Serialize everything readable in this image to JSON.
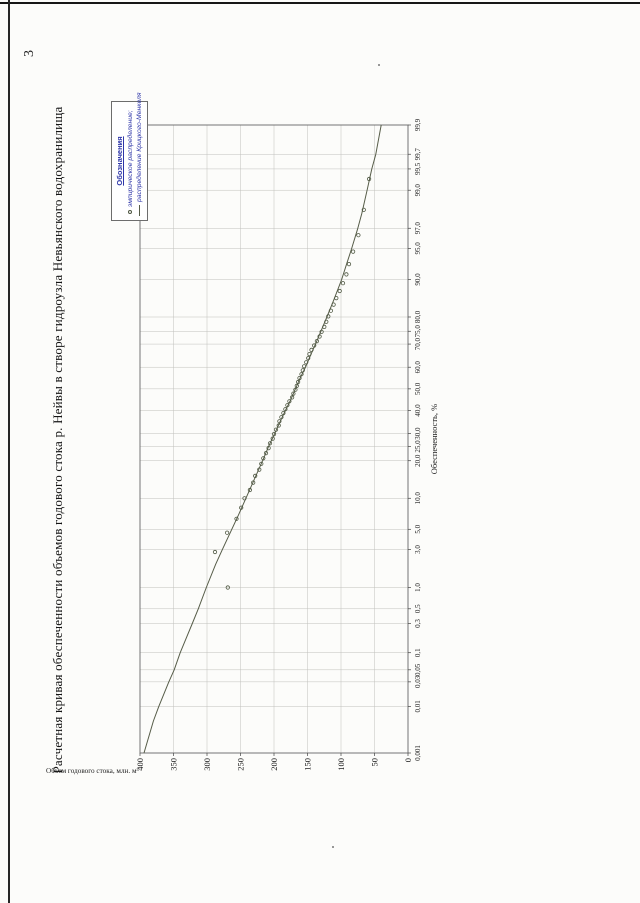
{
  "page": {
    "number": "3"
  },
  "chart_data": {
    "type": "line+scatter",
    "title": "Расчетная кривая обеспеченности объемов годового стока р. Нейвы в створе гидроузла Невьянского водохранилища",
    "xlabel": "Обеспеченность, %",
    "ylabel": "Объем годового стока, млн. м³",
    "x_scale": "normal-probability",
    "xlim_percent": [
      0.001,
      99.9
    ],
    "ylim": [
      0,
      400
    ],
    "grid": true,
    "y_ticks": [
      0,
      50,
      100,
      150,
      200,
      250,
      300,
      350,
      400
    ],
    "x_ticks": [
      {
        "p": 0.001,
        "label": "0,001"
      },
      {
        "p": 0.01,
        "label": "0,01"
      },
      {
        "p": 0.03,
        "label": "0,03"
      },
      {
        "p": 0.05,
        "label": "0,05"
      },
      {
        "p": 0.1,
        "label": "0,1"
      },
      {
        "p": 0.3,
        "label": "0,3"
      },
      {
        "p": 0.5,
        "label": "0,5"
      },
      {
        "p": 1,
        "label": "1,0"
      },
      {
        "p": 3,
        "label": "3,0"
      },
      {
        "p": 5,
        "label": "5,0"
      },
      {
        "p": 10,
        "label": "10,0"
      },
      {
        "p": 20,
        "label": "20,0"
      },
      {
        "p": 25,
        "label": "25,0"
      },
      {
        "p": 30,
        "label": "30,0"
      },
      {
        "p": 40,
        "label": "40,0"
      },
      {
        "p": 50,
        "label": "50,0"
      },
      {
        "p": 60,
        "label": "60,0"
      },
      {
        "p": 70,
        "label": "70,0"
      },
      {
        "p": 75,
        "label": "75,0"
      },
      {
        "p": 80,
        "label": "80,0"
      },
      {
        "p": 90,
        "label": "90,0"
      },
      {
        "p": 95,
        "label": "95,0"
      },
      {
        "p": 97,
        "label": "97,0"
      },
      {
        "p": 99,
        "label": "99,0"
      },
      {
        "p": 99.5,
        "label": "99,5"
      },
      {
        "p": 99.7,
        "label": "99,7"
      },
      {
        "p": 99.9,
        "label": "99,9"
      }
    ],
    "legend": {
      "title": "Обозначения",
      "entries": [
        {
          "marker": "circle",
          "label": "эмпирическое распределение;"
        },
        {
          "marker": "line",
          "label": "распределение Крицкого-Менкеля"
        }
      ]
    },
    "series": [
      {
        "name": "эмпирическое распределение",
        "type": "scatter",
        "points": [
          [
            1.0,
            269
          ],
          [
            2.8,
            288
          ],
          [
            4.6,
            270
          ],
          [
            6.4,
            256
          ],
          [
            8.2,
            249
          ],
          [
            10.0,
            244
          ],
          [
            11.8,
            236
          ],
          [
            13.6,
            231
          ],
          [
            15.4,
            228
          ],
          [
            17.2,
            222
          ],
          [
            19.0,
            219
          ],
          [
            20.8,
            216
          ],
          [
            22.6,
            212
          ],
          [
            24.4,
            208
          ],
          [
            26.2,
            206
          ],
          [
            28.0,
            202
          ],
          [
            29.8,
            200
          ],
          [
            31.6,
            197
          ],
          [
            33.4,
            193
          ],
          [
            35.2,
            192
          ],
          [
            37.0,
            189
          ],
          [
            38.8,
            186
          ],
          [
            40.6,
            183
          ],
          [
            42.4,
            180
          ],
          [
            44.2,
            177
          ],
          [
            46.0,
            173
          ],
          [
            47.8,
            171
          ],
          [
            49.6,
            168
          ],
          [
            51.4,
            166
          ],
          [
            53.2,
            164
          ],
          [
            55.0,
            162
          ],
          [
            56.8,
            159
          ],
          [
            58.6,
            157
          ],
          [
            60.4,
            155
          ],
          [
            62.2,
            152
          ],
          [
            64.0,
            149
          ],
          [
            65.8,
            147
          ],
          [
            67.6,
            144
          ],
          [
            69.4,
            140
          ],
          [
            71.2,
            136
          ],
          [
            73.0,
            132
          ],
          [
            74.8,
            129
          ],
          [
            76.6,
            125
          ],
          [
            78.4,
            122
          ],
          [
            80.2,
            119
          ],
          [
            82.0,
            115
          ],
          [
            83.8,
            111
          ],
          [
            85.6,
            107
          ],
          [
            87.4,
            102
          ],
          [
            89.2,
            97
          ],
          [
            91.0,
            92
          ],
          [
            92.8,
            88
          ],
          [
            94.6,
            82
          ],
          [
            96.4,
            74
          ],
          [
            98.2,
            66
          ],
          [
            99.3,
            58
          ]
        ]
      },
      {
        "name": "распределение Крицкого-Менкеля",
        "type": "line",
        "points": [
          [
            0.001,
            394
          ],
          [
            0.005,
            380
          ],
          [
            0.01,
            372
          ],
          [
            0.03,
            357
          ],
          [
            0.05,
            349
          ],
          [
            0.1,
            340
          ],
          [
            0.3,
            322
          ],
          [
            0.5,
            313
          ],
          [
            1,
            301
          ],
          [
            2,
            287
          ],
          [
            3,
            277
          ],
          [
            5,
            263
          ],
          [
            7,
            253
          ],
          [
            10,
            242
          ],
          [
            15,
            228
          ],
          [
            20,
            217
          ],
          [
            25,
            208
          ],
          [
            30,
            199
          ],
          [
            35,
            191
          ],
          [
            40,
            183
          ],
          [
            45,
            175
          ],
          [
            50,
            168
          ],
          [
            55,
            161
          ],
          [
            60,
            153
          ],
          [
            65,
            146
          ],
          [
            70,
            138
          ],
          [
            75,
            130
          ],
          [
            80,
            121
          ],
          [
            85,
            111
          ],
          [
            90,
            99
          ],
          [
            93,
            91
          ],
          [
            95,
            84
          ],
          [
            97,
            75
          ],
          [
            98,
            69
          ],
          [
            99,
            61
          ],
          [
            99.5,
            54
          ],
          [
            99.7,
            48
          ],
          [
            99.9,
            40
          ]
        ]
      }
    ],
    "colors": {
      "curve": "#565c48",
      "marker": "#4d5640",
      "grid": "#c0c0bc",
      "axis": "#444444",
      "frame": "#666666",
      "legend_text": "#2d35a8",
      "text": "#1c1c1c"
    }
  }
}
